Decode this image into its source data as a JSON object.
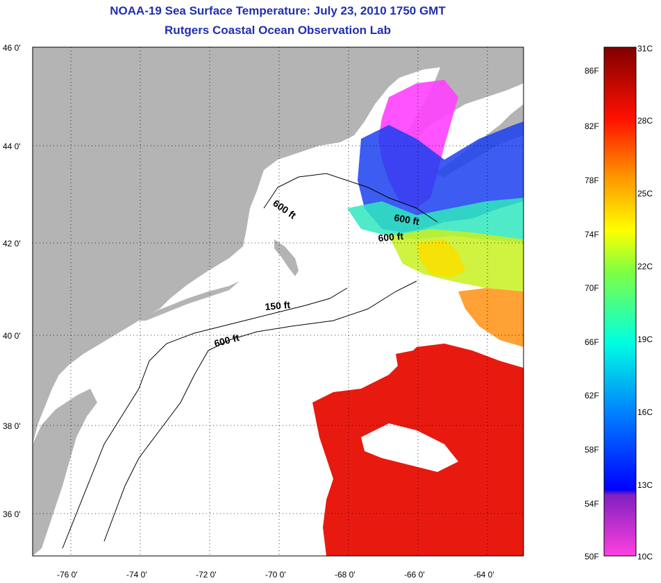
{
  "title": {
    "line1": "NOAA-19 Sea Surface Temperature:  July 23, 2010 1750 GMT",
    "line2": "Rutgers Coastal Ocean Observation Lab"
  },
  "map": {
    "lon_ticks": [
      "-76 0'",
      "-74 0'",
      "-72 0'",
      "-70 0'",
      "-68 0'",
      "-66 0'",
      "-64 0'"
    ],
    "lat_ticks": [
      "46 0'",
      "44 0'",
      "42 0'",
      "40 0'",
      "38 0'",
      "36 0'"
    ],
    "isobath_labels": [
      "600 ft",
      "600 ft",
      "600 ft",
      "150 ft",
      "600 ft"
    ],
    "colors": {
      "land": "#b4b4b4",
      "ocean_nodata": "#ffffff",
      "warm": "#e81a10",
      "cool": "#1a40f0",
      "cold": "#ff40ff"
    }
  },
  "colorbar": {
    "fahrenheit_labels": [
      "86F",
      "82F",
      "78F",
      "74F",
      "70F",
      "66F",
      "62F",
      "58F",
      "54F",
      "50F"
    ],
    "celsius_labels": [
      "31C",
      "28C",
      "25C",
      "22C",
      "19C",
      "16C",
      "13C",
      "10C"
    ],
    "range_c": [
      10,
      31
    ]
  }
}
